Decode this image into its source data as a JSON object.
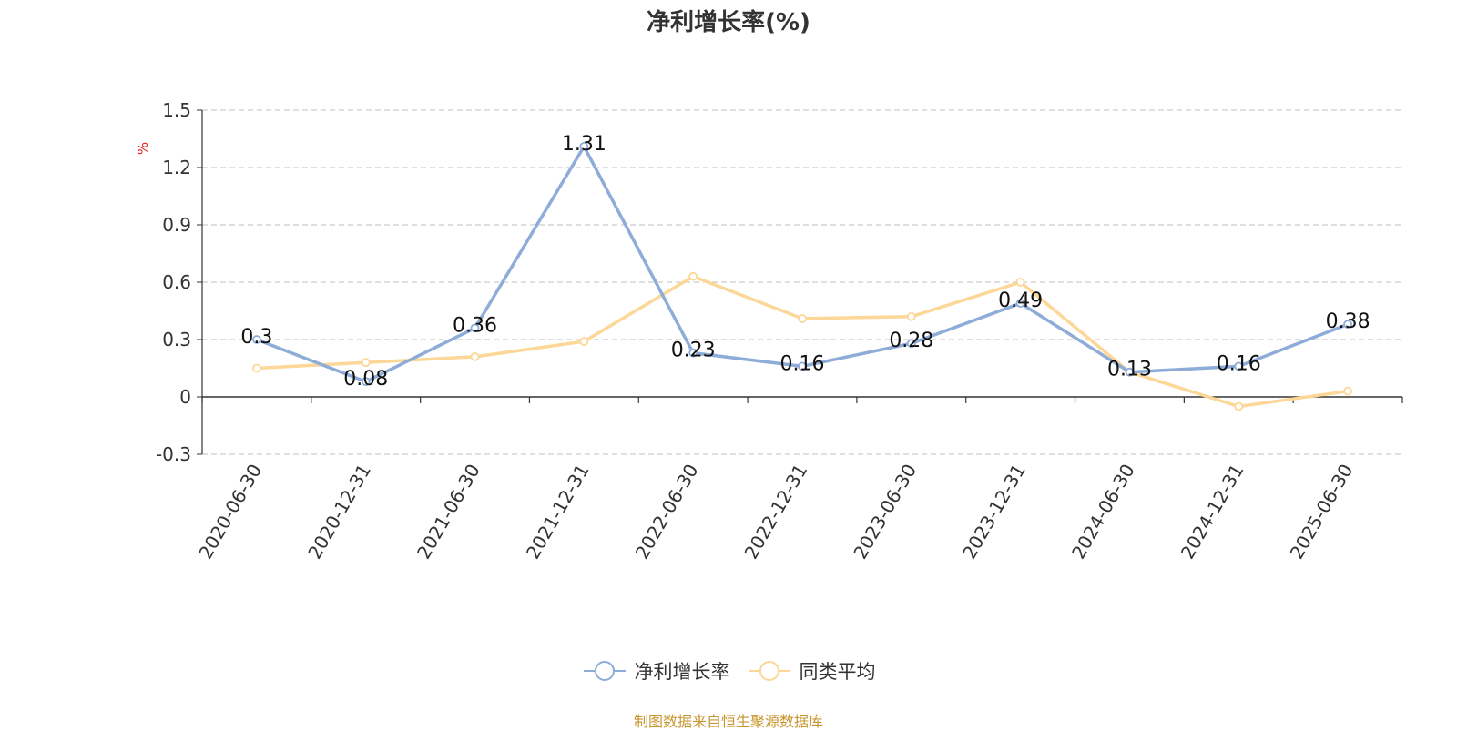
{
  "chart_data": {
    "type": "line",
    "title": "净利增长率(%)",
    "ylabel": "%",
    "ylim": [
      -0.3,
      1.5
    ],
    "yticks": [
      "1.5",
      "1.2",
      "0.9",
      "0.6",
      "0.3",
      "0",
      "-0.3"
    ],
    "x": [
      "2020-06-30",
      "2020-12-31",
      "2021-06-30",
      "2021-12-31",
      "2022-06-30",
      "2022-12-31",
      "2023-06-30",
      "2023-12-31",
      "2024-06-30",
      "2024-12-31",
      "2025-06-30"
    ],
    "series": [
      {
        "name": "净利增长率",
        "color": "#8eacd8",
        "values": [
          0.3,
          0.08,
          0.36,
          1.31,
          0.23,
          0.16,
          0.28,
          0.49,
          0.13,
          0.16,
          0.38
        ],
        "labels": [
          "0.3",
          "0.08",
          "0.36",
          "1.31",
          "0.23",
          "0.16",
          "0.28",
          "0.49",
          "0.13",
          "0.16",
          "0.38"
        ]
      },
      {
        "name": "同类平均",
        "color": "#fcd797",
        "values": [
          0.15,
          0.18,
          0.21,
          0.29,
          0.63,
          0.41,
          0.42,
          0.6,
          0.13,
          -0.05,
          0.03
        ]
      }
    ],
    "grid": true,
    "legend_position": "bottom-center"
  },
  "source_note": "制图数据来自恒生聚源数据库"
}
